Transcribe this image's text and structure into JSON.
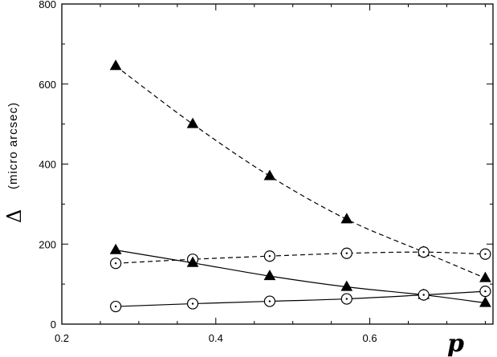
{
  "chart_data": {
    "type": "line",
    "xlim": [
      0.2,
      0.76
    ],
    "ylim": [
      0,
      800
    ],
    "xticks": [
      0.2,
      0.4,
      0.6
    ],
    "xtick_labels": [
      "0.2",
      "0.4",
      "0.6"
    ],
    "yticks": [
      0,
      200,
      400,
      600,
      800
    ],
    "ytick_labels": [
      "0",
      "200",
      "400",
      "600",
      "800"
    ],
    "ylabel_symbol": "Δ",
    "ylabel_unit": "(micro arcsec)",
    "xlabel": "p",
    "grid": false,
    "series": [
      {
        "marker": "triangle",
        "dash": "dashed",
        "x": [
          0.27,
          0.37,
          0.47,
          0.57,
          0.67,
          0.75
        ],
        "y": [
          645,
          500,
          370,
          262,
          180,
          115
        ]
      },
      {
        "marker": "circle-dot",
        "dash": "dashed",
        "x": [
          0.27,
          0.37,
          0.47,
          0.57,
          0.67,
          0.75
        ],
        "y": [
          152,
          162,
          170,
          177,
          180,
          175
        ]
      },
      {
        "marker": "triangle",
        "dash": "solid",
        "x": [
          0.27,
          0.37,
          0.47,
          0.57,
          0.67,
          0.75
        ],
        "y": [
          185,
          153,
          120,
          93,
          73,
          53
        ]
      },
      {
        "marker": "circle-dot",
        "dash": "solid",
        "x": [
          0.27,
          0.37,
          0.47,
          0.57,
          0.67,
          0.75
        ],
        "y": [
          44,
          51,
          57,
          63,
          73,
          82
        ]
      }
    ]
  }
}
